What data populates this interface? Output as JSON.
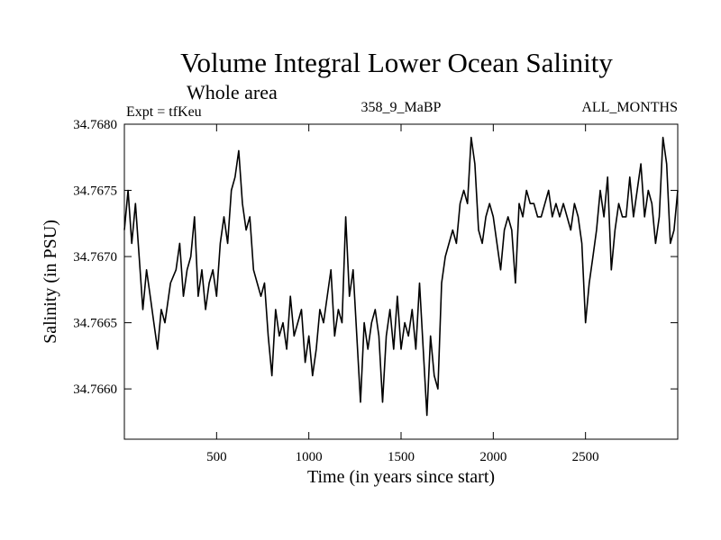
{
  "chart_data": {
    "type": "line",
    "title": "Volume Integral Lower Ocean Salinity",
    "subtitle": "Whole area",
    "annotations": {
      "left": "Expt = tfKeu",
      "center": "358_9_MaBP",
      "right": "ALL_MONTHS"
    },
    "xlabel": "Time (in years since start)",
    "ylabel": "Salinity (in PSU)",
    "xlim": [
      0,
      3000
    ],
    "ylim": [
      34.76562,
      34.768
    ],
    "x_ticks": [
      500,
      1000,
      1500,
      2000,
      2500
    ],
    "x_tick_labels": [
      "500",
      "1000",
      "1500",
      "2000",
      "2500"
    ],
    "y_ticks": [
      34.766,
      34.7665,
      34.767,
      34.7675,
      34.768
    ],
    "y_tick_labels": [
      "34.7660",
      "34.7665",
      "34.7670",
      "34.7675",
      "34.7680"
    ],
    "grid": false,
    "line_color": "#000000",
    "series": [
      {
        "x": [
          0,
          20,
          40,
          60,
          80,
          100,
          120,
          140,
          160,
          180,
          200,
          220,
          250,
          280,
          300,
          320,
          340,
          360,
          380,
          400,
          420,
          440,
          460,
          480,
          500,
          520,
          540,
          560,
          580,
          600,
          620,
          640,
          660,
          680,
          700,
          720,
          740,
          760,
          780,
          800,
          820,
          840,
          860,
          880,
          900,
          920,
          940,
          960,
          980,
          1000,
          1020,
          1040,
          1060,
          1080,
          1100,
          1120,
          1140,
          1160,
          1180,
          1200,
          1220,
          1240,
          1260,
          1280,
          1300,
          1320,
          1340,
          1360,
          1380,
          1400,
          1420,
          1440,
          1460,
          1480,
          1500,
          1520,
          1540,
          1560,
          1580,
          1600,
          1620,
          1640,
          1660,
          1680,
          1700,
          1720,
          1740,
          1760,
          1780,
          1800,
          1820,
          1840,
          1860,
          1880,
          1900,
          1920,
          1940,
          1960,
          1980,
          2000,
          2020,
          2040,
          2060,
          2080,
          2100,
          2120,
          2140,
          2160,
          2180,
          2200,
          2220,
          2240,
          2260,
          2280,
          2300,
          2320,
          2340,
          2360,
          2380,
          2400,
          2420,
          2440,
          2460,
          2480,
          2500,
          2520,
          2540,
          2560,
          2580,
          2600,
          2620,
          2640,
          2660,
          2680,
          2700,
          2720,
          2740,
          2760,
          2780,
          2800,
          2820,
          2840,
          2860,
          2880,
          2900,
          2920,
          2940,
          2960,
          2980,
          3000
        ],
        "values": [
          34.7672,
          34.7675,
          34.7671,
          34.7674,
          34.767,
          34.7666,
          34.7669,
          34.7667,
          34.7665,
          34.7663,
          34.7666,
          34.7665,
          34.7668,
          34.7669,
          34.7671,
          34.7667,
          34.7669,
          34.767,
          34.7673,
          34.7667,
          34.7669,
          34.7666,
          34.7668,
          34.7669,
          34.7667,
          34.7671,
          34.7673,
          34.7671,
          34.7675,
          34.7676,
          34.7678,
          34.7674,
          34.7672,
          34.7673,
          34.7669,
          34.7668,
          34.7667,
          34.7668,
          34.7664,
          34.7661,
          34.7666,
          34.7664,
          34.7665,
          34.7663,
          34.7667,
          34.7664,
          34.7665,
          34.7666,
          34.7662,
          34.7664,
          34.7661,
          34.7663,
          34.7666,
          34.7665,
          34.7667,
          34.7669,
          34.7664,
          34.7666,
          34.7665,
          34.7673,
          34.7667,
          34.7669,
          34.7664,
          34.7659,
          34.7665,
          34.7663,
          34.7665,
          34.7666,
          34.7664,
          34.7659,
          34.7664,
          34.7666,
          34.7663,
          34.7667,
          34.7663,
          34.7665,
          34.7664,
          34.7666,
          34.7663,
          34.7668,
          34.7663,
          34.7658,
          34.7664,
          34.7661,
          34.766,
          34.7668,
          34.767,
          34.7671,
          34.7672,
          34.7671,
          34.7674,
          34.7675,
          34.7674,
          34.7679,
          34.7677,
          34.7672,
          34.7671,
          34.7673,
          34.7674,
          34.7673,
          34.7671,
          34.7669,
          34.7672,
          34.7673,
          34.7672,
          34.7668,
          34.7674,
          34.7673,
          34.7675,
          34.7674,
          34.7674,
          34.7673,
          34.7673,
          34.7674,
          34.7675,
          34.7673,
          34.7674,
          34.7673,
          34.7674,
          34.7673,
          34.7672,
          34.7674,
          34.7673,
          34.7671,
          34.7665,
          34.7668,
          34.767,
          34.7672,
          34.7675,
          34.7673,
          34.7676,
          34.7669,
          34.7672,
          34.7674,
          34.7673,
          34.7673,
          34.7676,
          34.7673,
          34.7675,
          34.7677,
          34.7673,
          34.7675,
          34.7674,
          34.7671,
          34.7673,
          34.7679,
          34.7677,
          34.7671,
          34.7672,
          34.7675
        ]
      }
    ]
  }
}
